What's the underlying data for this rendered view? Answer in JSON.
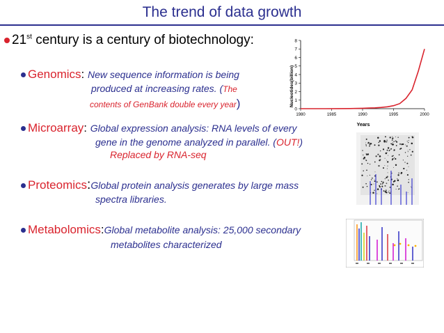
{
  "title": "The trend of data growth",
  "main_bullet": {
    "prefix": "21",
    "superscript": "st",
    "text": " century is a century of biotechnology:"
  },
  "genomics": {
    "label": "Genomics",
    "colon": ": ",
    "line1": "New sequence information is being",
    "line2a": "produced at increasing rates. (",
    "line2b": "The",
    "line3a": "contents of GenBank double every year",
    "line3b": ")"
  },
  "microarray": {
    "label": "Microarray",
    "colon": ": ",
    "line1": "Global expression analysis: RNA levels of every",
    "line2a": "gene in the genome analyzed in parallel. (",
    "line2b": "OUT!",
    "line2c": ")",
    "line3": "Replaced by RNA-seq"
  },
  "proteomics": {
    "label": "Proteomics",
    "colon": ":",
    "line1": "Global protein analysis generates by large mass",
    "line2": "spectra libraries."
  },
  "metabolomics": {
    "label": "Metabolomics",
    "colon": ":",
    "line1": "Global metabolite analysis: 25,000 secondary",
    "line2": "metabolites characterized"
  },
  "chart_data": {
    "type": "line",
    "title": "",
    "xlabel": "Years",
    "ylabel": "Nucleotides(billion)",
    "xlim": [
      1980,
      2000
    ],
    "ylim": [
      0,
      8
    ],
    "x_ticks": [
      1980,
      1985,
      1990,
      1995,
      2000
    ],
    "y_ticks": [
      0,
      1,
      2,
      3,
      4,
      5,
      6,
      7,
      8
    ],
    "grid": false,
    "legend": "none",
    "series": [
      {
        "color": "#d9232d",
        "x": [
          1980,
          1982,
          1984,
          1986,
          1988,
          1990,
          1991,
          1992,
          1993,
          1994,
          1995,
          1996,
          1997,
          1998,
          1999,
          2000
        ],
        "y": [
          0.0,
          0.0,
          0.0,
          0.01,
          0.02,
          0.05,
          0.07,
          0.1,
          0.15,
          0.22,
          0.35,
          0.6,
          1.2,
          2.2,
          4.4,
          7.0
        ]
      }
    ]
  }
}
